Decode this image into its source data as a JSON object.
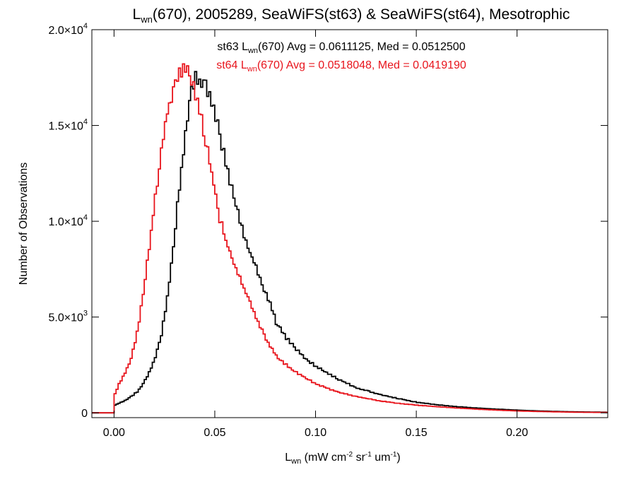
{
  "chart_data": {
    "type": "line",
    "title": {
      "main": "L",
      "sub": "wn",
      "rest": "(670), 2005289, SeaWiFS(st63) & SeaWiFS(st64), Mesotrophic"
    },
    "xlabel": {
      "main": "L",
      "sub": "wn",
      "p1": " (mW cm",
      "s1": "-2",
      "p2": " sr",
      "s2": "-1",
      "p3": " um",
      "s3": "-1",
      "p4": ")"
    },
    "ylabel": "Number of Observations",
    "xlim": [
      -0.011,
      0.245
    ],
    "ylim": [
      -250,
      20000
    ],
    "xticks": [
      {
        "value": 0.0,
        "label": "0.00"
      },
      {
        "value": 0.05,
        "label": "0.05"
      },
      {
        "value": 0.1,
        "label": "0.10"
      },
      {
        "value": 0.15,
        "label": "0.15"
      },
      {
        "value": 0.2,
        "label": "0.20"
      }
    ],
    "yticks": [
      {
        "value": 0,
        "mant": "0",
        "exp": ""
      },
      {
        "value": 5000,
        "mant": "5.0×10",
        "exp": "3"
      },
      {
        "value": 10000,
        "mant": "1.0×10",
        "exp": "4"
      },
      {
        "value": 15000,
        "mant": "1.5×10",
        "exp": "4"
      },
      {
        "value": 20000,
        "mant": "2.0×10",
        "exp": "4"
      }
    ],
    "grid": false,
    "annotations": [
      {
        "pre": "st63 L",
        "sub": "wn",
        "post": "(670) Avg = 0.0611125, Med = 0.0512500",
        "color": "#000000"
      },
      {
        "pre": "st64 L",
        "sub": "wn",
        "post": "(670) Avg = 0.0518048, Med = 0.0419190",
        "color": "#e8141c"
      }
    ],
    "series": [
      {
        "color": "#000000",
        "x": [
          -0.011,
          -0.001,
          0.0,
          0.002,
          0.005,
          0.008,
          0.011,
          0.014,
          0.017,
          0.02,
          0.023,
          0.026,
          0.029,
          0.032,
          0.035,
          0.037,
          0.039,
          0.04,
          0.042,
          0.044,
          0.047,
          0.05,
          0.053,
          0.056,
          0.059,
          0.062,
          0.065,
          0.068,
          0.071,
          0.074,
          0.077,
          0.08,
          0.085,
          0.09,
          0.095,
          0.1,
          0.11,
          0.12,
          0.13,
          0.14,
          0.15,
          0.16,
          0.17,
          0.18,
          0.19,
          0.2,
          0.21,
          0.22,
          0.23,
          0.245
        ],
        "y": [
          0,
          0,
          400,
          500,
          650,
          850,
          1100,
          1500,
          2100,
          2900,
          4100,
          6000,
          8700,
          11800,
          14400,
          16300,
          17200,
          17500,
          17400,
          17200,
          16600,
          15400,
          14000,
          12600,
          11300,
          10100,
          9000,
          8100,
          7300,
          6500,
          5700,
          4700,
          3900,
          3300,
          2800,
          2400,
          1800,
          1300,
          1000,
          760,
          550,
          420,
          320,
          250,
          190,
          140,
          100,
          70,
          50,
          30
        ]
      },
      {
        "color": "#e8141c",
        "x": [
          -0.011,
          -0.001,
          0.0,
          0.002,
          0.004,
          0.006,
          0.008,
          0.01,
          0.012,
          0.014,
          0.016,
          0.018,
          0.02,
          0.022,
          0.024,
          0.026,
          0.028,
          0.03,
          0.032,
          0.034,
          0.035,
          0.036,
          0.038,
          0.04,
          0.042,
          0.044,
          0.046,
          0.048,
          0.05,
          0.052,
          0.055,
          0.058,
          0.061,
          0.064,
          0.067,
          0.07,
          0.073,
          0.076,
          0.08,
          0.085,
          0.09,
          0.095,
          0.1,
          0.11,
          0.12,
          0.13,
          0.14,
          0.15,
          0.16,
          0.17,
          0.18,
          0.19,
          0.2,
          0.21,
          0.22,
          0.23,
          0.245
        ],
        "y": [
          0,
          0,
          1000,
          1500,
          1900,
          2300,
          2900,
          3700,
          4800,
          6200,
          7800,
          9500,
          11200,
          12800,
          14400,
          15600,
          16600,
          17300,
          17800,
          18000,
          17900,
          17800,
          17300,
          16600,
          15700,
          14800,
          13700,
          12500,
          11300,
          10100,
          9000,
          8100,
          7300,
          6500,
          5800,
          5000,
          4300,
          3600,
          3000,
          2500,
          2100,
          1800,
          1500,
          1100,
          850,
          650,
          500,
          400,
          320,
          250,
          190,
          140,
          100,
          70,
          50,
          30,
          20
        ]
      }
    ]
  }
}
